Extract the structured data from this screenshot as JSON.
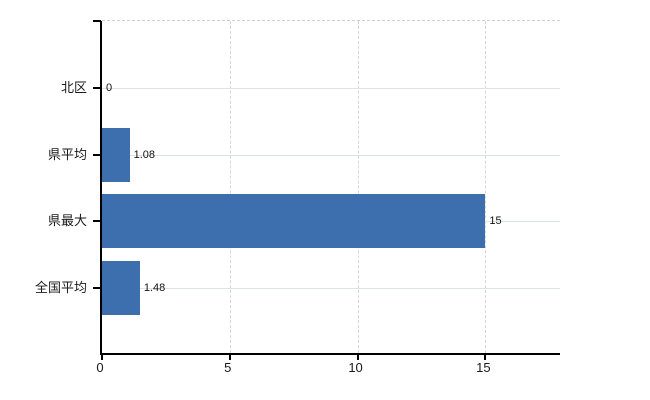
{
  "chart_data": {
    "type": "bar",
    "orientation": "horizontal",
    "title": "",
    "xlabel": "",
    "ylabel": "",
    "categories": [
      "北区",
      "県平均",
      "県最大",
      "全国平均"
    ],
    "values": [
      0,
      1.08,
      15,
      1.48
    ],
    "value_labels": [
      "0",
      "1.08",
      "15",
      "1.48"
    ],
    "x_ticks": [
      0,
      5,
      10,
      15
    ],
    "x_tick_labels": [
      "0",
      "5",
      "10",
      "15"
    ],
    "xlim": [
      0,
      18
    ],
    "grid": "on",
    "legend": "none",
    "bar_color": "#3d6eae",
    "gridline_color": "#dde3dd",
    "axis_color": "#000000",
    "text_color": "#1a1a1a"
  }
}
